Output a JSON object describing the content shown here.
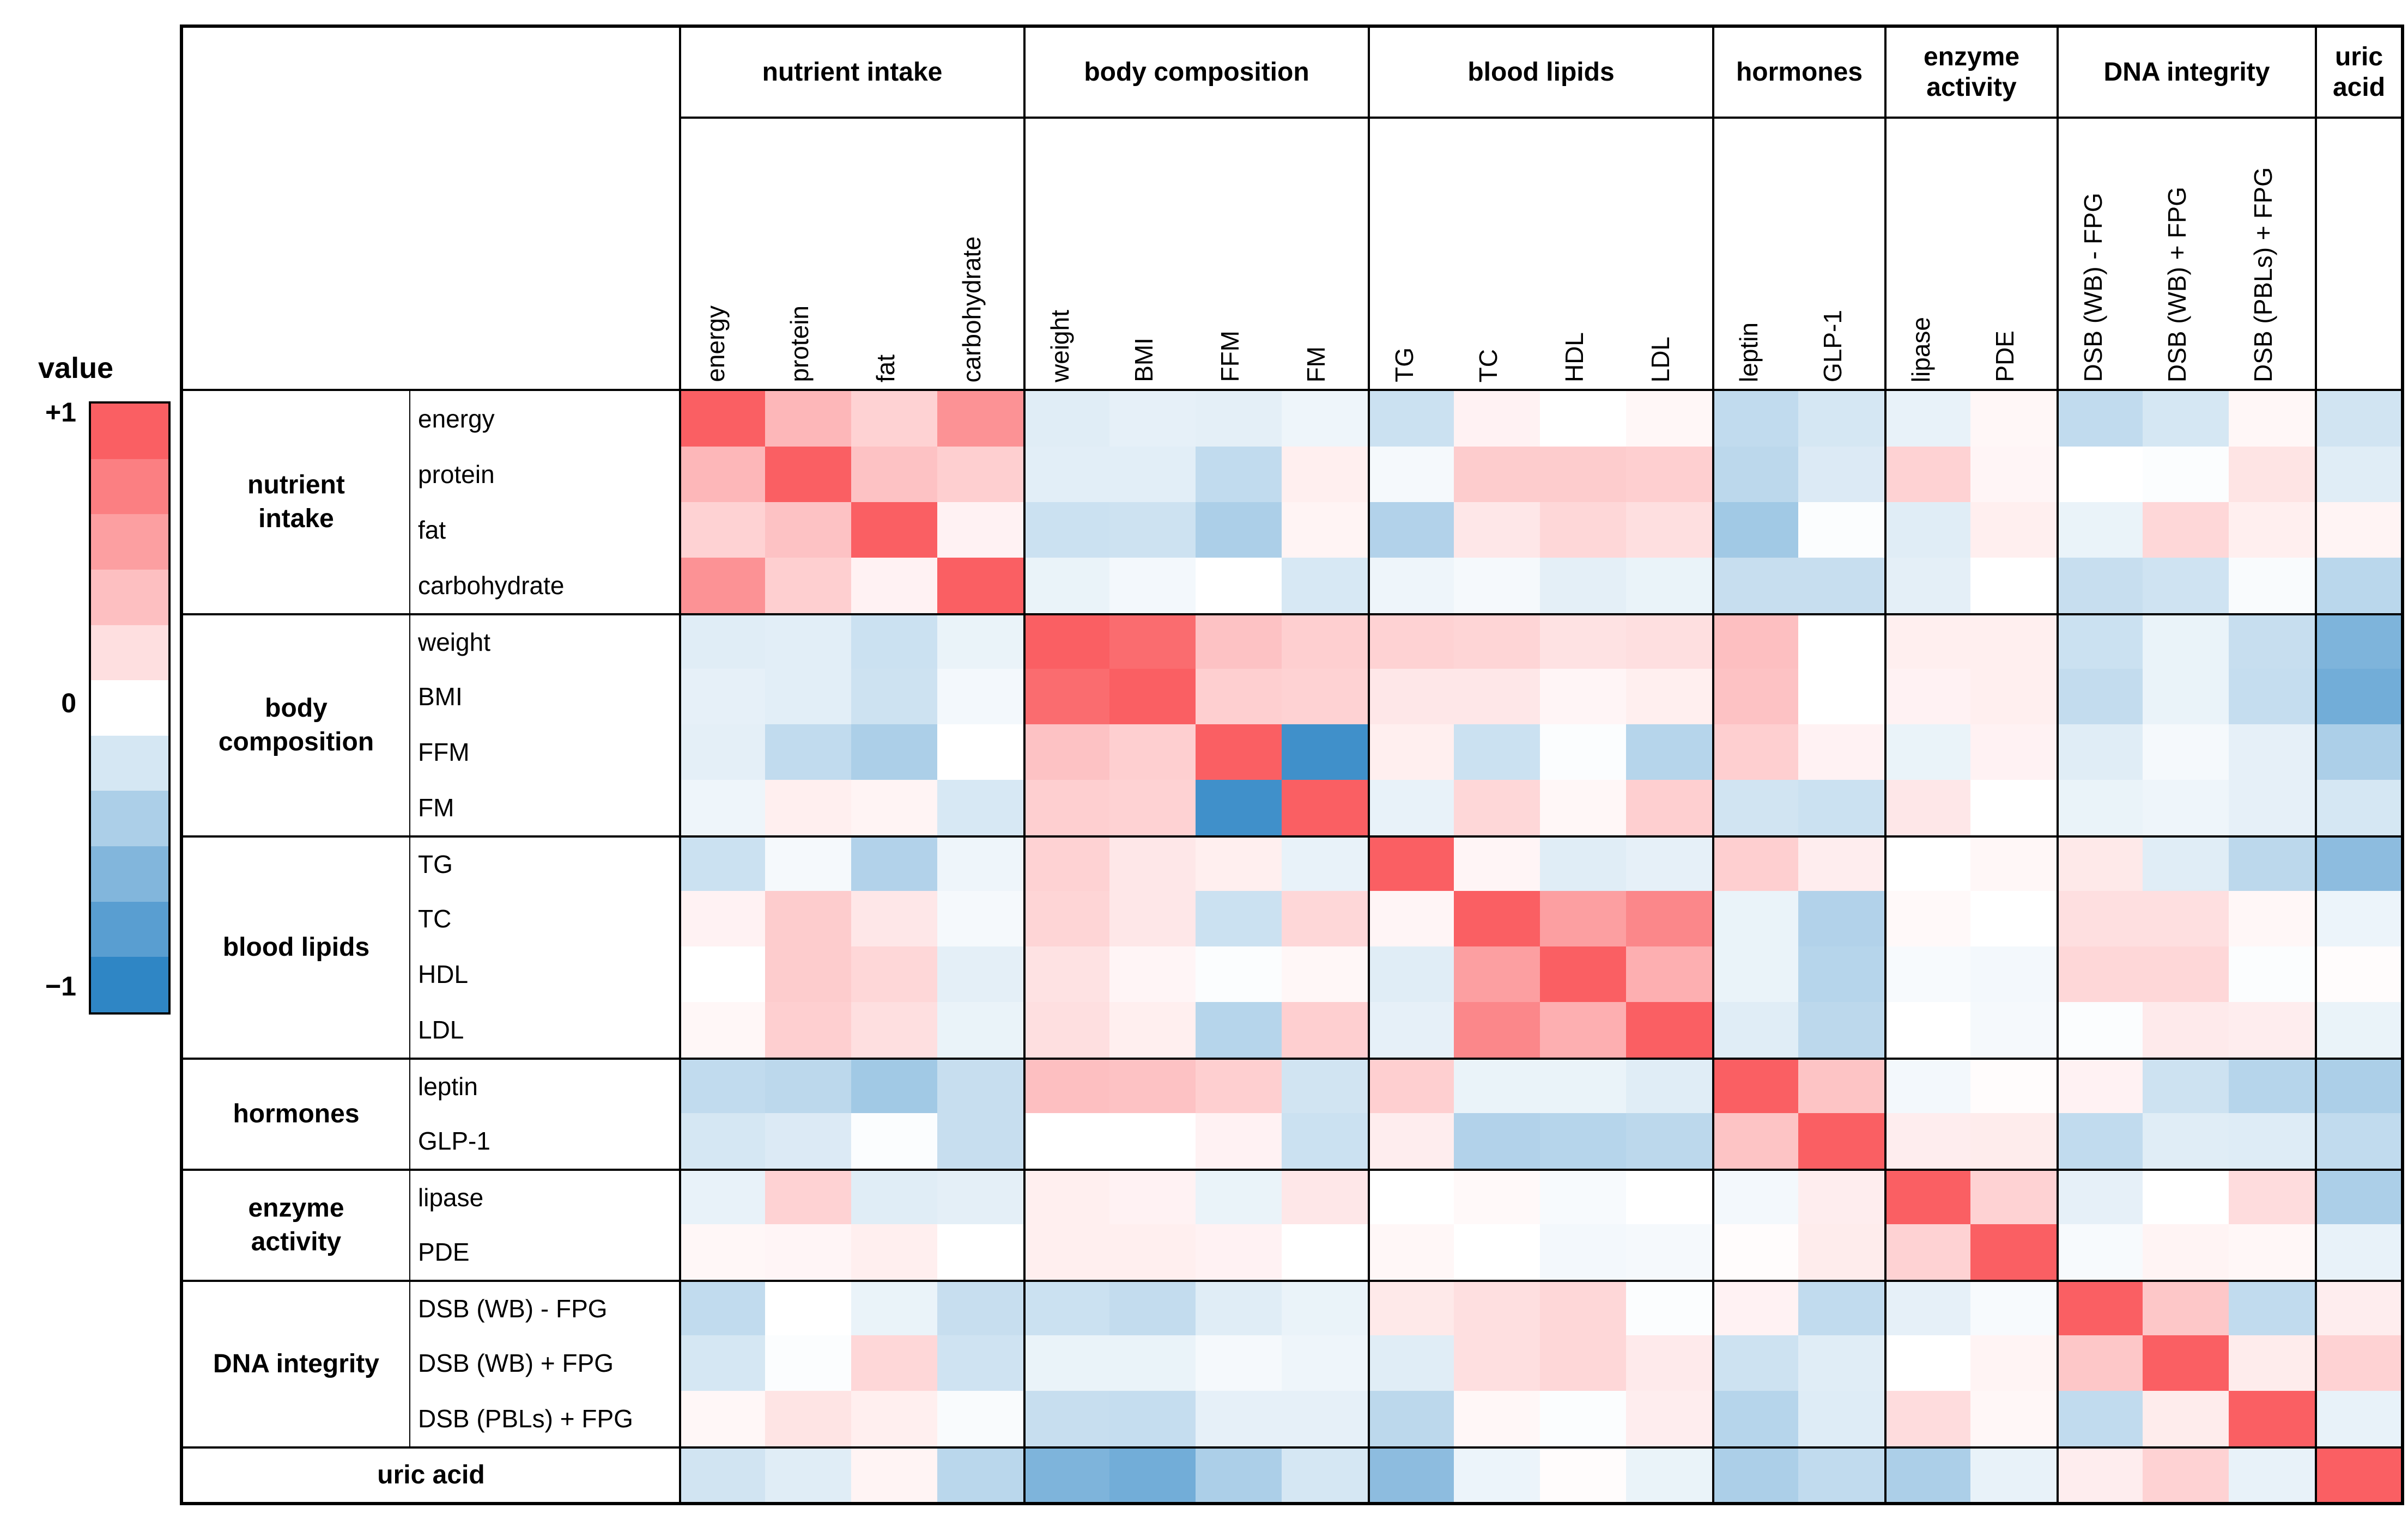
{
  "legend": {
    "title": "value",
    "top_label": "+1",
    "mid_label": "0",
    "bottom_label": "−1",
    "steps": 11
  },
  "colors": {
    "positive_max": "#fa5f63",
    "zero": "#ffffff",
    "negative_max": "#2f86c5",
    "border": "#000000"
  },
  "chart_data": {
    "type": "heatmap",
    "value_range": [
      -1,
      1
    ],
    "legend_position": "left",
    "groups": [
      {
        "label": "nutrient intake",
        "items": [
          "energy",
          "protein",
          "fat",
          "carbohydrate"
        ]
      },
      {
        "label": "body composition",
        "items": [
          "weight",
          "BMI",
          "FFM",
          "FM"
        ]
      },
      {
        "label": "blood lipids",
        "items": [
          "TG",
          "TC",
          "HDL",
          "LDL"
        ]
      },
      {
        "label": "hormones",
        "items": [
          "leptin",
          "GLP-1"
        ]
      },
      {
        "label": "enzyme activity",
        "items": [
          "lipase",
          "PDE"
        ]
      },
      {
        "label": "DNA integrity",
        "items": [
          "DSB (WB) - FPG",
          "DSB (WB) + FPG",
          "DSB (PBLs) + FPG"
        ]
      },
      {
        "label": "uric acid",
        "items": [
          "uric acid"
        ],
        "merged_row_label": true,
        "show_col_label": false
      }
    ],
    "matrix": [
      [
        1.0,
        0.45,
        0.28,
        0.68,
        -0.15,
        -0.12,
        -0.13,
        -0.08,
        -0.25,
        0.08,
        0.0,
        0.05,
        -0.3,
        -0.2,
        -0.11,
        0.05,
        -0.3,
        -0.2,
        0.05,
        -0.22
      ],
      [
        0.45,
        1.0,
        0.38,
        0.3,
        -0.14,
        -0.14,
        -0.3,
        0.1,
        -0.05,
        0.32,
        0.32,
        0.3,
        -0.32,
        -0.17,
        0.28,
        0.06,
        0.0,
        -0.02,
        0.17,
        -0.15
      ],
      [
        0.28,
        0.38,
        1.0,
        0.08,
        -0.25,
        -0.24,
        -0.4,
        0.07,
        -0.37,
        0.15,
        0.25,
        0.2,
        -0.45,
        -0.02,
        -0.15,
        0.1,
        -0.1,
        0.25,
        0.1,
        0.07
      ],
      [
        0.68,
        0.3,
        0.08,
        1.0,
        -0.1,
        -0.06,
        0.0,
        -0.19,
        -0.08,
        -0.05,
        -0.13,
        -0.1,
        -0.27,
        -0.27,
        -0.13,
        0.0,
        -0.27,
        -0.23,
        -0.03,
        -0.33
      ],
      [
        -0.15,
        -0.14,
        -0.25,
        -0.1,
        1.0,
        0.92,
        0.38,
        0.3,
        0.28,
        0.26,
        0.18,
        0.2,
        0.4,
        0.0,
        0.1,
        0.1,
        -0.25,
        -0.1,
        -0.27,
        -0.62
      ],
      [
        -0.12,
        -0.14,
        -0.24,
        -0.06,
        0.92,
        1.0,
        0.3,
        0.28,
        0.15,
        0.15,
        0.06,
        0.1,
        0.38,
        0.0,
        0.08,
        0.1,
        -0.29,
        -0.1,
        -0.28,
        -0.68
      ],
      [
        -0.13,
        -0.3,
        -0.4,
        0.0,
        0.38,
        0.3,
        1.0,
        -0.92,
        0.1,
        -0.25,
        -0.02,
        -0.35,
        0.3,
        0.08,
        -0.1,
        0.08,
        -0.15,
        -0.05,
        -0.12,
        -0.4
      ],
      [
        -0.08,
        0.1,
        0.07,
        -0.19,
        0.3,
        0.28,
        -0.92,
        1.0,
        -0.11,
        0.25,
        0.05,
        0.3,
        -0.22,
        -0.25,
        0.15,
        0.0,
        -0.1,
        -0.08,
        -0.12,
        -0.2
      ],
      [
        -0.25,
        -0.05,
        -0.37,
        -0.08,
        0.28,
        0.15,
        0.1,
        -0.11,
        1.0,
        0.06,
        -0.15,
        -0.12,
        0.3,
        0.11,
        0.0,
        0.05,
        0.14,
        -0.15,
        -0.32,
        -0.55
      ],
      [
        0.08,
        0.32,
        0.15,
        -0.05,
        0.26,
        0.15,
        -0.25,
        0.25,
        0.06,
        1.0,
        0.6,
        0.75,
        -0.1,
        -0.37,
        0.04,
        0.0,
        0.2,
        0.2,
        0.05,
        -0.09
      ],
      [
        0.0,
        0.32,
        0.25,
        -0.13,
        0.18,
        0.06,
        -0.02,
        0.05,
        -0.15,
        0.6,
        1.0,
        0.5,
        -0.1,
        -0.35,
        -0.04,
        -0.06,
        0.25,
        0.25,
        -0.02,
        0.02
      ],
      [
        0.05,
        0.3,
        0.2,
        -0.1,
        0.2,
        0.1,
        -0.35,
        0.3,
        -0.12,
        0.75,
        0.5,
        1.0,
        -0.15,
        -0.32,
        0.0,
        -0.05,
        -0.02,
        0.13,
        0.11,
        -0.1
      ],
      [
        -0.3,
        -0.32,
        -0.45,
        -0.27,
        0.4,
        0.38,
        0.3,
        -0.22,
        0.3,
        -0.1,
        -0.1,
        -0.15,
        1.0,
        0.37,
        -0.06,
        0.02,
        0.08,
        -0.24,
        -0.35,
        -0.4
      ],
      [
        -0.2,
        -0.17,
        -0.02,
        -0.27,
        0.0,
        0.0,
        0.08,
        -0.25,
        0.11,
        -0.37,
        -0.35,
        -0.32,
        0.37,
        1.0,
        0.11,
        0.12,
        -0.3,
        -0.15,
        -0.16,
        -0.3
      ],
      [
        -0.11,
        0.28,
        -0.15,
        -0.13,
        0.1,
        0.08,
        -0.1,
        0.15,
        0.0,
        0.04,
        -0.04,
        0.0,
        -0.06,
        0.11,
        1.0,
        0.28,
        -0.12,
        0.0,
        0.22,
        -0.4
      ],
      [
        0.05,
        0.06,
        0.1,
        0.0,
        0.1,
        0.1,
        0.08,
        0.0,
        0.05,
        0.0,
        -0.06,
        -0.05,
        0.02,
        0.12,
        0.28,
        1.0,
        -0.04,
        0.07,
        0.05,
        -0.11
      ],
      [
        -0.3,
        0.0,
        -0.1,
        -0.27,
        -0.25,
        -0.29,
        -0.15,
        -0.1,
        0.14,
        0.2,
        0.25,
        -0.02,
        0.08,
        -0.3,
        -0.12,
        -0.04,
        1.0,
        0.35,
        -0.3,
        0.11
      ],
      [
        -0.2,
        -0.02,
        0.25,
        -0.23,
        -0.1,
        -0.1,
        -0.05,
        -0.08,
        -0.15,
        0.2,
        0.25,
        0.13,
        -0.24,
        -0.15,
        0.0,
        0.07,
        0.35,
        1.0,
        0.12,
        0.28
      ],
      [
        0.05,
        0.17,
        0.1,
        -0.03,
        -0.27,
        -0.28,
        -0.12,
        -0.12,
        -0.32,
        0.05,
        -0.02,
        0.11,
        -0.35,
        -0.16,
        0.22,
        0.05,
        -0.3,
        0.12,
        1.0,
        -0.11
      ],
      [
        -0.22,
        -0.15,
        0.07,
        -0.33,
        -0.62,
        -0.68,
        -0.4,
        -0.2,
        -0.55,
        -0.09,
        0.02,
        -0.1,
        -0.4,
        -0.3,
        -0.4,
        -0.11,
        0.11,
        0.28,
        -0.11,
        1.0
      ]
    ]
  }
}
